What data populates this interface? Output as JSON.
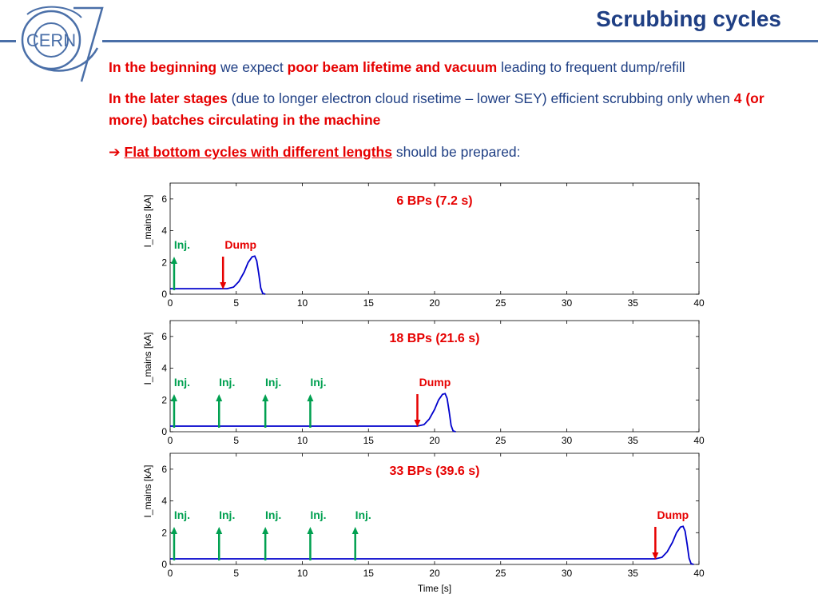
{
  "slide": {
    "title": "Scrubbing cycles",
    "logo_text": "CERN",
    "bullets": {
      "b1": {
        "p1": "In the beginning",
        "p2": " we expect ",
        "p3": "poor beam lifetime and vacuum",
        "p4": " leading to frequent dump/refill"
      },
      "b2": {
        "p1": "In the later stages",
        "p2": " (due to longer electron cloud risetime – lower SEY) efficient scrubbing only when ",
        "p3": "4 (or more) batches circulating in the machine"
      },
      "b3": {
        "arrow": "➔ ",
        "p1": "Flat bottom cycles with different lengths",
        "p2": " should be prepared:"
      }
    },
    "colors": {
      "title_blue": "#1f3f84",
      "highlight_red": "#e60000",
      "injection_green": "#00a050",
      "curve_blue": "#0000cc"
    }
  },
  "chart_data": [
    {
      "type": "line",
      "title": "6 BPs (7.2 s)",
      "xlabel": "",
      "ylabel": "I_mains [kA]",
      "xlim": [
        0,
        40
      ],
      "ylim": [
        0,
        7
      ],
      "x_ticks": [
        0,
        5,
        10,
        15,
        20,
        25,
        30,
        35,
        40
      ],
      "y_ticks": [
        0,
        2,
        4,
        6
      ],
      "grid": false,
      "series": [
        {
          "x": [
            0,
            4.3,
            4.8,
            5.2,
            5.6,
            5.9,
            6.2,
            6.4,
            6.55,
            6.7,
            6.85,
            7.0,
            7.2
          ],
          "values": [
            0.35,
            0.35,
            0.45,
            0.8,
            1.4,
            2.0,
            2.35,
            2.4,
            2.1,
            1.3,
            0.4,
            0.05,
            0.0
          ]
        }
      ],
      "annotations": [
        {
          "label": "Inj.",
          "kind": "injection",
          "x": 0.3
        },
        {
          "label": "Dump",
          "kind": "dump",
          "x": 4.0
        }
      ]
    },
    {
      "type": "line",
      "title": "18 BPs (21.6 s)",
      "xlabel": "",
      "ylabel": "I_mains [kA]",
      "xlim": [
        0,
        40
      ],
      "ylim": [
        0,
        7
      ],
      "x_ticks": [
        0,
        5,
        10,
        15,
        20,
        25,
        30,
        35,
        40
      ],
      "y_ticks": [
        0,
        2,
        4,
        6
      ],
      "grid": false,
      "series": [
        {
          "x": [
            0,
            18.7,
            19.2,
            19.6,
            20.0,
            20.3,
            20.6,
            20.8,
            20.95,
            21.1,
            21.25,
            21.4,
            21.6
          ],
          "values": [
            0.35,
            0.35,
            0.45,
            0.8,
            1.4,
            2.0,
            2.35,
            2.4,
            2.1,
            1.3,
            0.4,
            0.05,
            0.0
          ]
        }
      ],
      "annotations": [
        {
          "label": "Inj.",
          "kind": "injection",
          "x": 0.3
        },
        {
          "label": "Inj.",
          "kind": "injection",
          "x": 3.7
        },
        {
          "label": "Inj.",
          "kind": "injection",
          "x": 7.2
        },
        {
          "label": "Inj.",
          "kind": "injection",
          "x": 10.6
        },
        {
          "label": "Dump",
          "kind": "dump",
          "x": 18.7
        }
      ]
    },
    {
      "type": "line",
      "title": "33 BPs (39.6 s)",
      "xlabel": "Time [s]",
      "ylabel": "I_mains [kA]",
      "xlim": [
        0,
        40
      ],
      "ylim": [
        0,
        7
      ],
      "x_ticks": [
        0,
        5,
        10,
        15,
        20,
        25,
        30,
        35,
        40
      ],
      "y_ticks": [
        0,
        2,
        4,
        6
      ],
      "grid": false,
      "series": [
        {
          "x": [
            0,
            36.7,
            37.2,
            37.6,
            38.0,
            38.3,
            38.6,
            38.8,
            38.95,
            39.1,
            39.25,
            39.4,
            39.6
          ],
          "values": [
            0.35,
            0.35,
            0.45,
            0.8,
            1.4,
            2.0,
            2.35,
            2.4,
            2.1,
            1.3,
            0.4,
            0.05,
            0.0
          ]
        }
      ],
      "annotations": [
        {
          "label": "Inj.",
          "kind": "injection",
          "x": 0.3
        },
        {
          "label": "Inj.",
          "kind": "injection",
          "x": 3.7
        },
        {
          "label": "Inj.",
          "kind": "injection",
          "x": 7.2
        },
        {
          "label": "Inj.",
          "kind": "injection",
          "x": 10.6
        },
        {
          "label": "Inj.",
          "kind": "injection",
          "x": 14.0
        },
        {
          "label": "Dump",
          "kind": "dump",
          "x": 36.7
        }
      ]
    }
  ]
}
